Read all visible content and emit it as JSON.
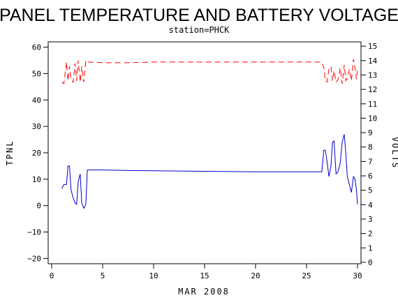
{
  "chart_data": {
    "type": "line",
    "title": "PANEL TEMPERATURE AND BATTERY VOLTAGE",
    "subtitle": "station=PHCK",
    "xlabel": "MAR 2008",
    "ylabel_left": "TPNL",
    "ylabel_right": "VOLTS",
    "xlim": [
      0,
      30
    ],
    "ylim_left": [
      -22,
      62
    ],
    "ylim_right": [
      -0.1,
      15.3
    ],
    "x_ticks": [
      0,
      5,
      10,
      15,
      20,
      25,
      30
    ],
    "y_ticks_left": [
      -20,
      -10,
      0,
      10,
      20,
      30,
      40,
      50,
      60
    ],
    "y_ticks_right": [
      0,
      1,
      2,
      3,
      4,
      5,
      6,
      7,
      8,
      9,
      10,
      11,
      12,
      13,
      14,
      15
    ],
    "grid": false,
    "series": [
      {
        "key": "tpnl",
        "axis": "left",
        "color": "#0000cc",
        "dash": "solid",
        "x": [
          1.0,
          1.2,
          1.45,
          1.6,
          1.75,
          1.9,
          2.1,
          2.3,
          2.45,
          2.6,
          2.8,
          2.95,
          3.15,
          3.35,
          3.5,
          5.0,
          7.5,
          10,
          15,
          20,
          26.5,
          26.7,
          26.85,
          27.0,
          27.2,
          27.4,
          27.55,
          27.7,
          27.9,
          28.1,
          28.3,
          28.5,
          28.7,
          28.85,
          29.0,
          29.2,
          29.4,
          29.6,
          29.75,
          29.9,
          30.0
        ],
        "y": [
          6.5,
          8.0,
          8.0,
          15.0,
          15.0,
          6.0,
          3.0,
          1.0,
          0.5,
          9.0,
          12.0,
          1.0,
          -1.0,
          0.5,
          13.5,
          13.5,
          13.3,
          13.2,
          13.0,
          12.8,
          12.8,
          21.0,
          21.0,
          17.0,
          11.0,
          15.0,
          24.0,
          24.5,
          12.0,
          13.0,
          16.0,
          24.0,
          27.0,
          20.0,
          11.0,
          8.0,
          5.0,
          11.0,
          10.0,
          6.0,
          0.5
        ]
      },
      {
        "key": "volts",
        "axis": "right",
        "color": "#ff0000",
        "dash": "dashed",
        "x": [
          1.0,
          1.2,
          1.45,
          1.6,
          1.75,
          1.9,
          2.1,
          2.3,
          2.45,
          2.6,
          2.8,
          2.95,
          3.15,
          3.35,
          3.5,
          5.0,
          7.5,
          10,
          15,
          20,
          26.5,
          26.7,
          26.85,
          27.0,
          27.2,
          27.4,
          27.55,
          27.7,
          27.9,
          28.1,
          28.3,
          28.5,
          28.7,
          28.85,
          29.0,
          29.2,
          29.4,
          29.6,
          29.75,
          29.9,
          30.0
        ],
        "y": [
          12.5,
          12.4,
          13.9,
          12.6,
          13.6,
          12.7,
          12.5,
          13.8,
          12.6,
          14.0,
          12.5,
          13.6,
          12.5,
          14.0,
          13.9,
          13.85,
          13.85,
          13.9,
          13.9,
          13.9,
          13.9,
          13.5,
          12.6,
          12.5,
          13.4,
          13.6,
          12.6,
          13.3,
          12.5,
          12.7,
          13.5,
          12.4,
          13.7,
          12.6,
          12.8,
          13.4,
          12.6,
          14.1,
          13.5,
          12.7,
          13.3
        ]
      }
    ]
  }
}
